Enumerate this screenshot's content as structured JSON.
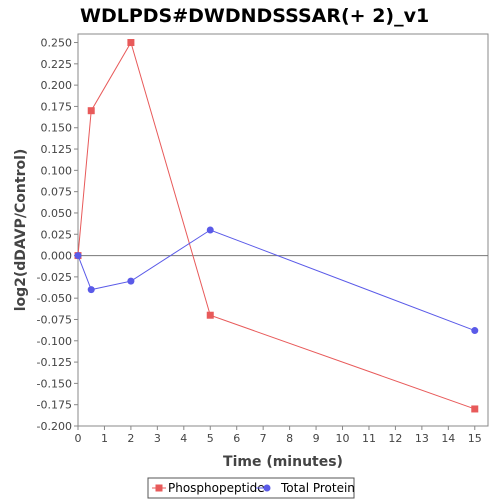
{
  "chart_data": {
    "type": "line",
    "title": "WDLPDS#DWDNDSSSAR(+ 2)_v1",
    "xlabel": "Time (minutes)",
    "ylabel": "log2(dDAVP/Control)",
    "xlim": [
      0,
      15.5
    ],
    "ylim": [
      -0.2,
      0.26
    ],
    "xticks": [
      0,
      1,
      2,
      3,
      4,
      5,
      6,
      7,
      8,
      9,
      10,
      11,
      12,
      13,
      14,
      15
    ],
    "yticks": [
      -0.2,
      -0.175,
      -0.15,
      -0.125,
      -0.1,
      -0.075,
      -0.05,
      -0.025,
      0.0,
      0.025,
      0.05,
      0.075,
      0.1,
      0.125,
      0.15,
      0.175,
      0.2,
      0.225,
      0.25
    ],
    "ytick_labels": [
      "-0.200",
      "-0.175",
      "-0.150",
      "-0.125",
      "-0.100",
      "-0.075",
      "-0.050",
      "-0.025",
      "0.000",
      "0.025",
      "0.050",
      "0.075",
      "0.100",
      "0.125",
      "0.150",
      "0.175",
      "0.200",
      "0.225",
      "0.250"
    ],
    "legend_position": "bottom",
    "grid": false,
    "series": [
      {
        "name": "Phosphopeptide",
        "color": "#e85a5a",
        "marker": "square",
        "x": [
          0,
          0.5,
          2,
          5,
          15
        ],
        "y": [
          0.0,
          0.17,
          0.25,
          -0.07,
          -0.18
        ]
      },
      {
        "name": "Total Protein",
        "color": "#5a5ae8",
        "marker": "circle",
        "x": [
          0,
          0.5,
          2,
          5,
          15
        ],
        "y": [
          0.0,
          -0.04,
          -0.03,
          0.03,
          -0.088
        ]
      }
    ]
  }
}
